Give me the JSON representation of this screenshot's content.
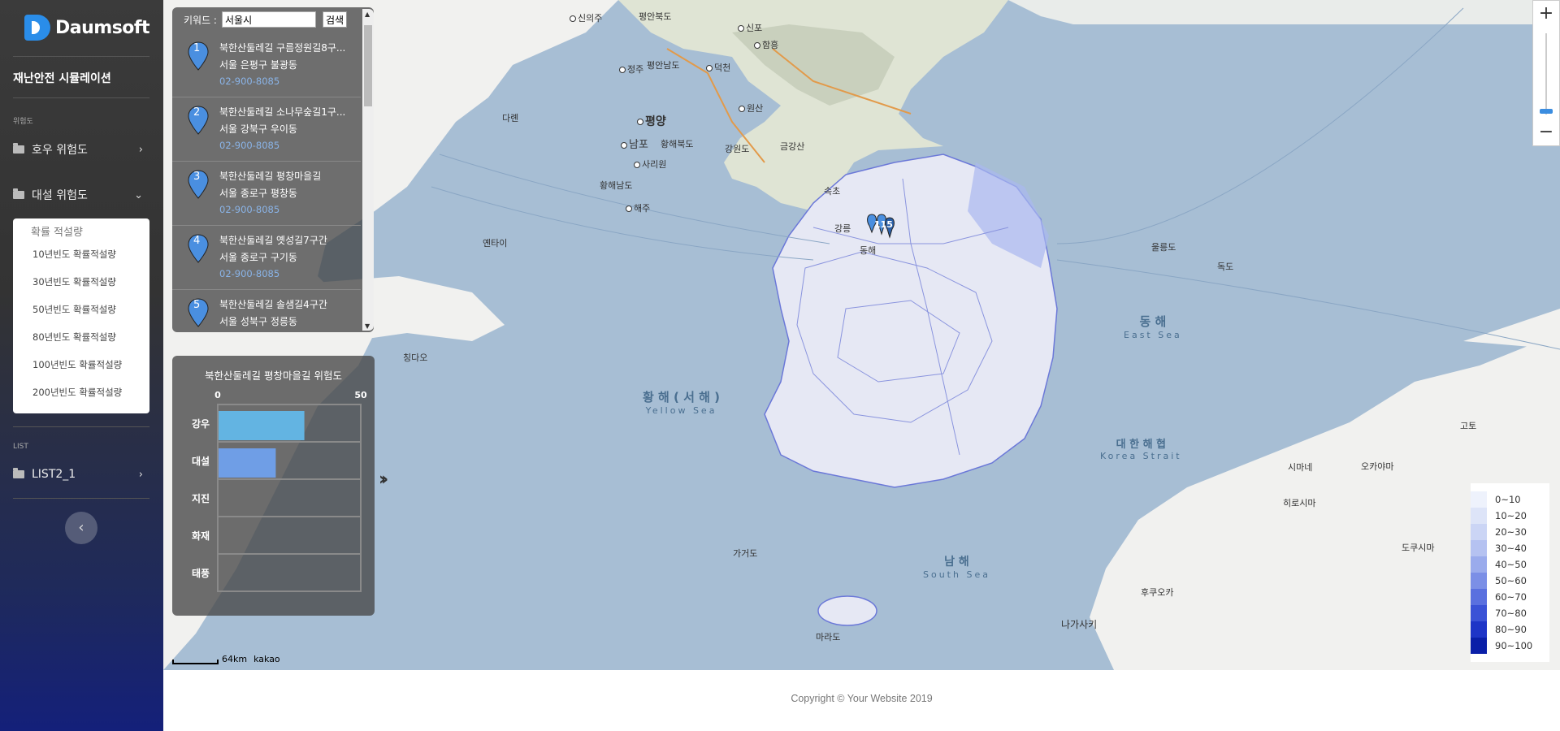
{
  "brand": {
    "name": "Daumsoft"
  },
  "sidebar": {
    "app_title": "재난안전 시뮬레이션",
    "section_risk": "위험도",
    "menu_rain": "호우 위험도",
    "menu_snow": "대설 위험도",
    "submenu_title": "확률 적설량",
    "submenu_items": [
      "10년빈도 확률적설량",
      "30년빈도 확률적설량",
      "50년빈도 확률적설량",
      "80년빈도 확률적설량",
      "100년빈도 확률적설량",
      "200년빈도 확률적설량"
    ],
    "section_list": "LIST",
    "menu_list": "LIST2_1"
  },
  "search": {
    "label": "키워드 :",
    "value": "서울시",
    "button": "검색"
  },
  "results": [
    {
      "num": "1",
      "name": "북한산둘레길 구름정원길8구...",
      "addr": "서울 은평구 불광동",
      "phone": "02-900-8085"
    },
    {
      "num": "2",
      "name": "북한산둘레길 소나무숲길1구...",
      "addr": "서울 강북구 우이동",
      "phone": "02-900-8085"
    },
    {
      "num": "3",
      "name": "북한산둘레길 평창마을길",
      "addr": "서울 종로구 평창동",
      "phone": "02-900-8085"
    },
    {
      "num": "4",
      "name": "북한산둘레길 옛성길7구간",
      "addr": "서울 종로구 구기동",
      "phone": "02-900-8085"
    },
    {
      "num": "5",
      "name": "북한산둘레길 솔샘길4구간",
      "addr": "서울 성북구 정릉동",
      "phone": ""
    }
  ],
  "chart_data": {
    "type": "bar",
    "title": "북한산둘레길 평창마을길 위험도",
    "categories": [
      "강우",
      "대설",
      "지진",
      "화재",
      "태풍"
    ],
    "values": [
      30,
      20,
      0,
      0,
      0
    ],
    "xlim": [
      0,
      50
    ],
    "tick_labels": [
      "0",
      "50"
    ],
    "colors": [
      "#63b4e2",
      "#6f9ee6",
      "#cccccc",
      "#cccccc",
      "#cccccc"
    ]
  },
  "map": {
    "marker_label": "115",
    "places": [
      {
        "name": "신의주",
        "city": true
      },
      {
        "name": "평안북도",
        "city": false
      },
      {
        "name": "신포",
        "city": true
      },
      {
        "name": "함흥",
        "city": true
      },
      {
        "name": "정주",
        "city": true
      },
      {
        "name": "평안남도",
        "city": false
      },
      {
        "name": "덕천",
        "city": true
      },
      {
        "name": "원산",
        "city": true
      },
      {
        "name": "평양",
        "city": true
      },
      {
        "name": "남포",
        "city": true
      },
      {
        "name": "황해북도",
        "city": false
      },
      {
        "name": "강원도",
        "city": false
      },
      {
        "name": "금강산",
        "city": false
      },
      {
        "name": "사리원",
        "city": true
      },
      {
        "name": "황해남도",
        "city": false
      },
      {
        "name": "해주",
        "city": true
      },
      {
        "name": "속초",
        "city": false
      },
      {
        "name": "강릉",
        "city": false
      },
      {
        "name": "동해",
        "city": false
      },
      {
        "name": "다롄",
        "city": false
      },
      {
        "name": "옌타이",
        "city": false
      },
      {
        "name": "칭다오",
        "city": false
      },
      {
        "name": "독도",
        "city": false
      },
      {
        "name": "울릉도",
        "city": false
      },
      {
        "name": "시마네",
        "city": false
      },
      {
        "name": "오카야마",
        "city": false
      },
      {
        "name": "히로시마",
        "city": false
      },
      {
        "name": "도쿠시마",
        "city": false
      },
      {
        "name": "후쿠오카",
        "city": false
      },
      {
        "name": "나가사키",
        "city": false
      },
      {
        "name": "고토",
        "city": false
      },
      {
        "name": "마라도",
        "city": false
      },
      {
        "name": "가거도",
        "city": false
      }
    ],
    "seas": [
      {
        "ko": "동 해",
        "en": "East Sea"
      },
      {
        "ko": "황 해 ( 서 해 )",
        "en": "Yellow Sea"
      },
      {
        "ko": "대 한 해 협",
        "en": "Korea Strait"
      },
      {
        "ko": "남 해",
        "en": "South Sea"
      }
    ],
    "scale": "64km",
    "attribution": "kakao"
  },
  "legend": {
    "items": [
      {
        "label": "0~10",
        "color": "#eef2fc"
      },
      {
        "label": "10~20",
        "color": "#dde4f8"
      },
      {
        "label": "20~30",
        "color": "#cbd5f5"
      },
      {
        "label": "30~40",
        "color": "#b5c2f1"
      },
      {
        "label": "40~50",
        "color": "#9aabec"
      },
      {
        "label": "50~60",
        "color": "#7b8fe6"
      },
      {
        "label": "60~70",
        "color": "#5a70df"
      },
      {
        "label": "70~80",
        "color": "#3a52d6"
      },
      {
        "label": "80~90",
        "color": "#1e35c7"
      },
      {
        "label": "90~100",
        "color": "#0a1fa8"
      }
    ]
  },
  "footer": {
    "copyright": "Copyright © Your Website 2019"
  }
}
